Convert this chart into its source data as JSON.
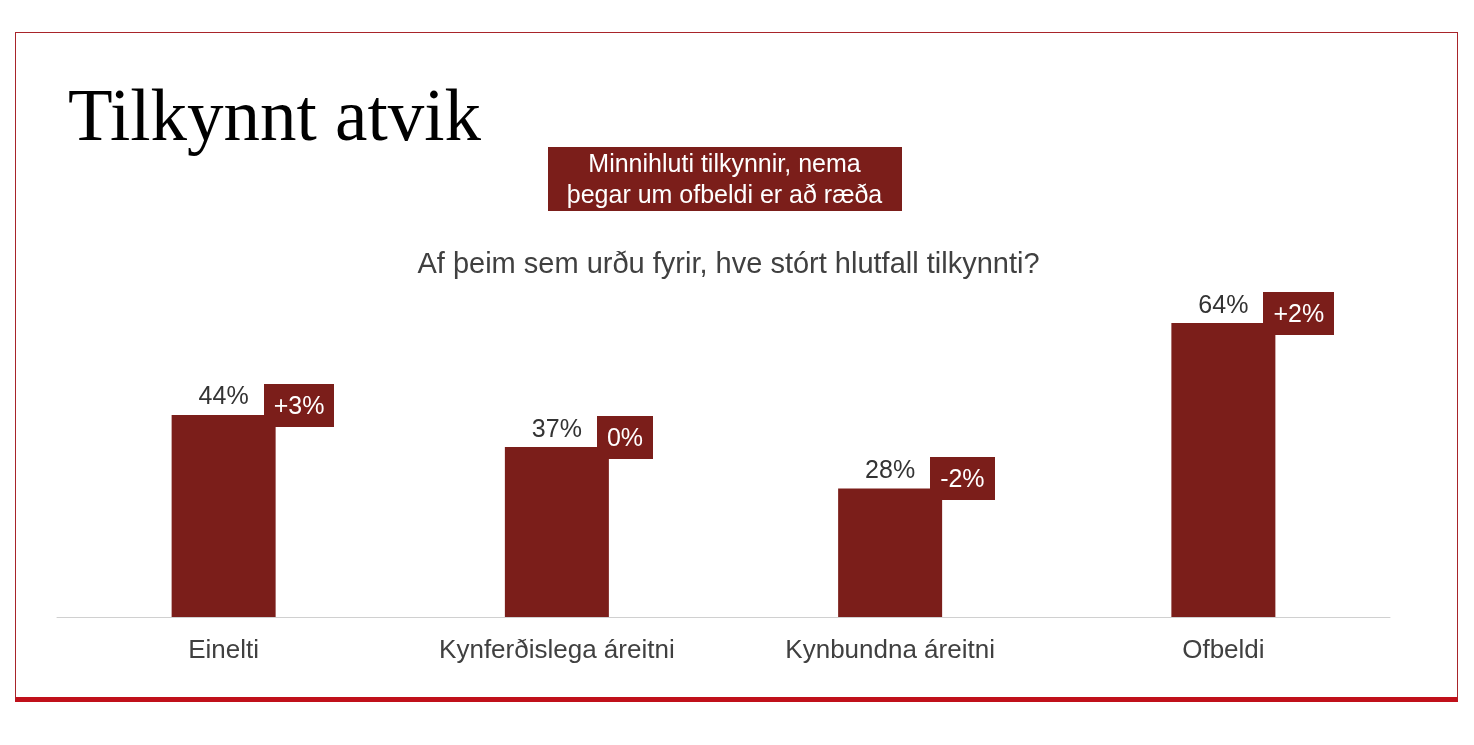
{
  "chart_data": {
    "type": "bar",
    "title": "Tilkynnt atvik",
    "subtitle": "Af þeim sem urðu fyrir, hve stórt hlutfall tilkynnti?",
    "categories": [
      "Einelti",
      "Kynferðislega áreitni",
      "Kynbundna áreitni",
      "Ofbeldi"
    ],
    "values": [
      44,
      37,
      28,
      64
    ],
    "value_labels": [
      "44%",
      "37%",
      "28%",
      "64%"
    ],
    "color": "#7b1e1a",
    "annotations": [
      "Minnihluti tilkynnir, nema þegar um ofbeldi er að ræða",
      {
        "text": "+3%",
        "x": "Einelti",
        "y": 44
      },
      {
        "text": "0%",
        "x": "Kynferðislega áreitni",
        "y": 37
      },
      {
        "text": "-2%",
        "x": "Kynbundna áreitni",
        "y": 28
      },
      {
        "text": "+2%",
        "x": "Ofbeldi",
        "y": 64
      }
    ]
  }
}
